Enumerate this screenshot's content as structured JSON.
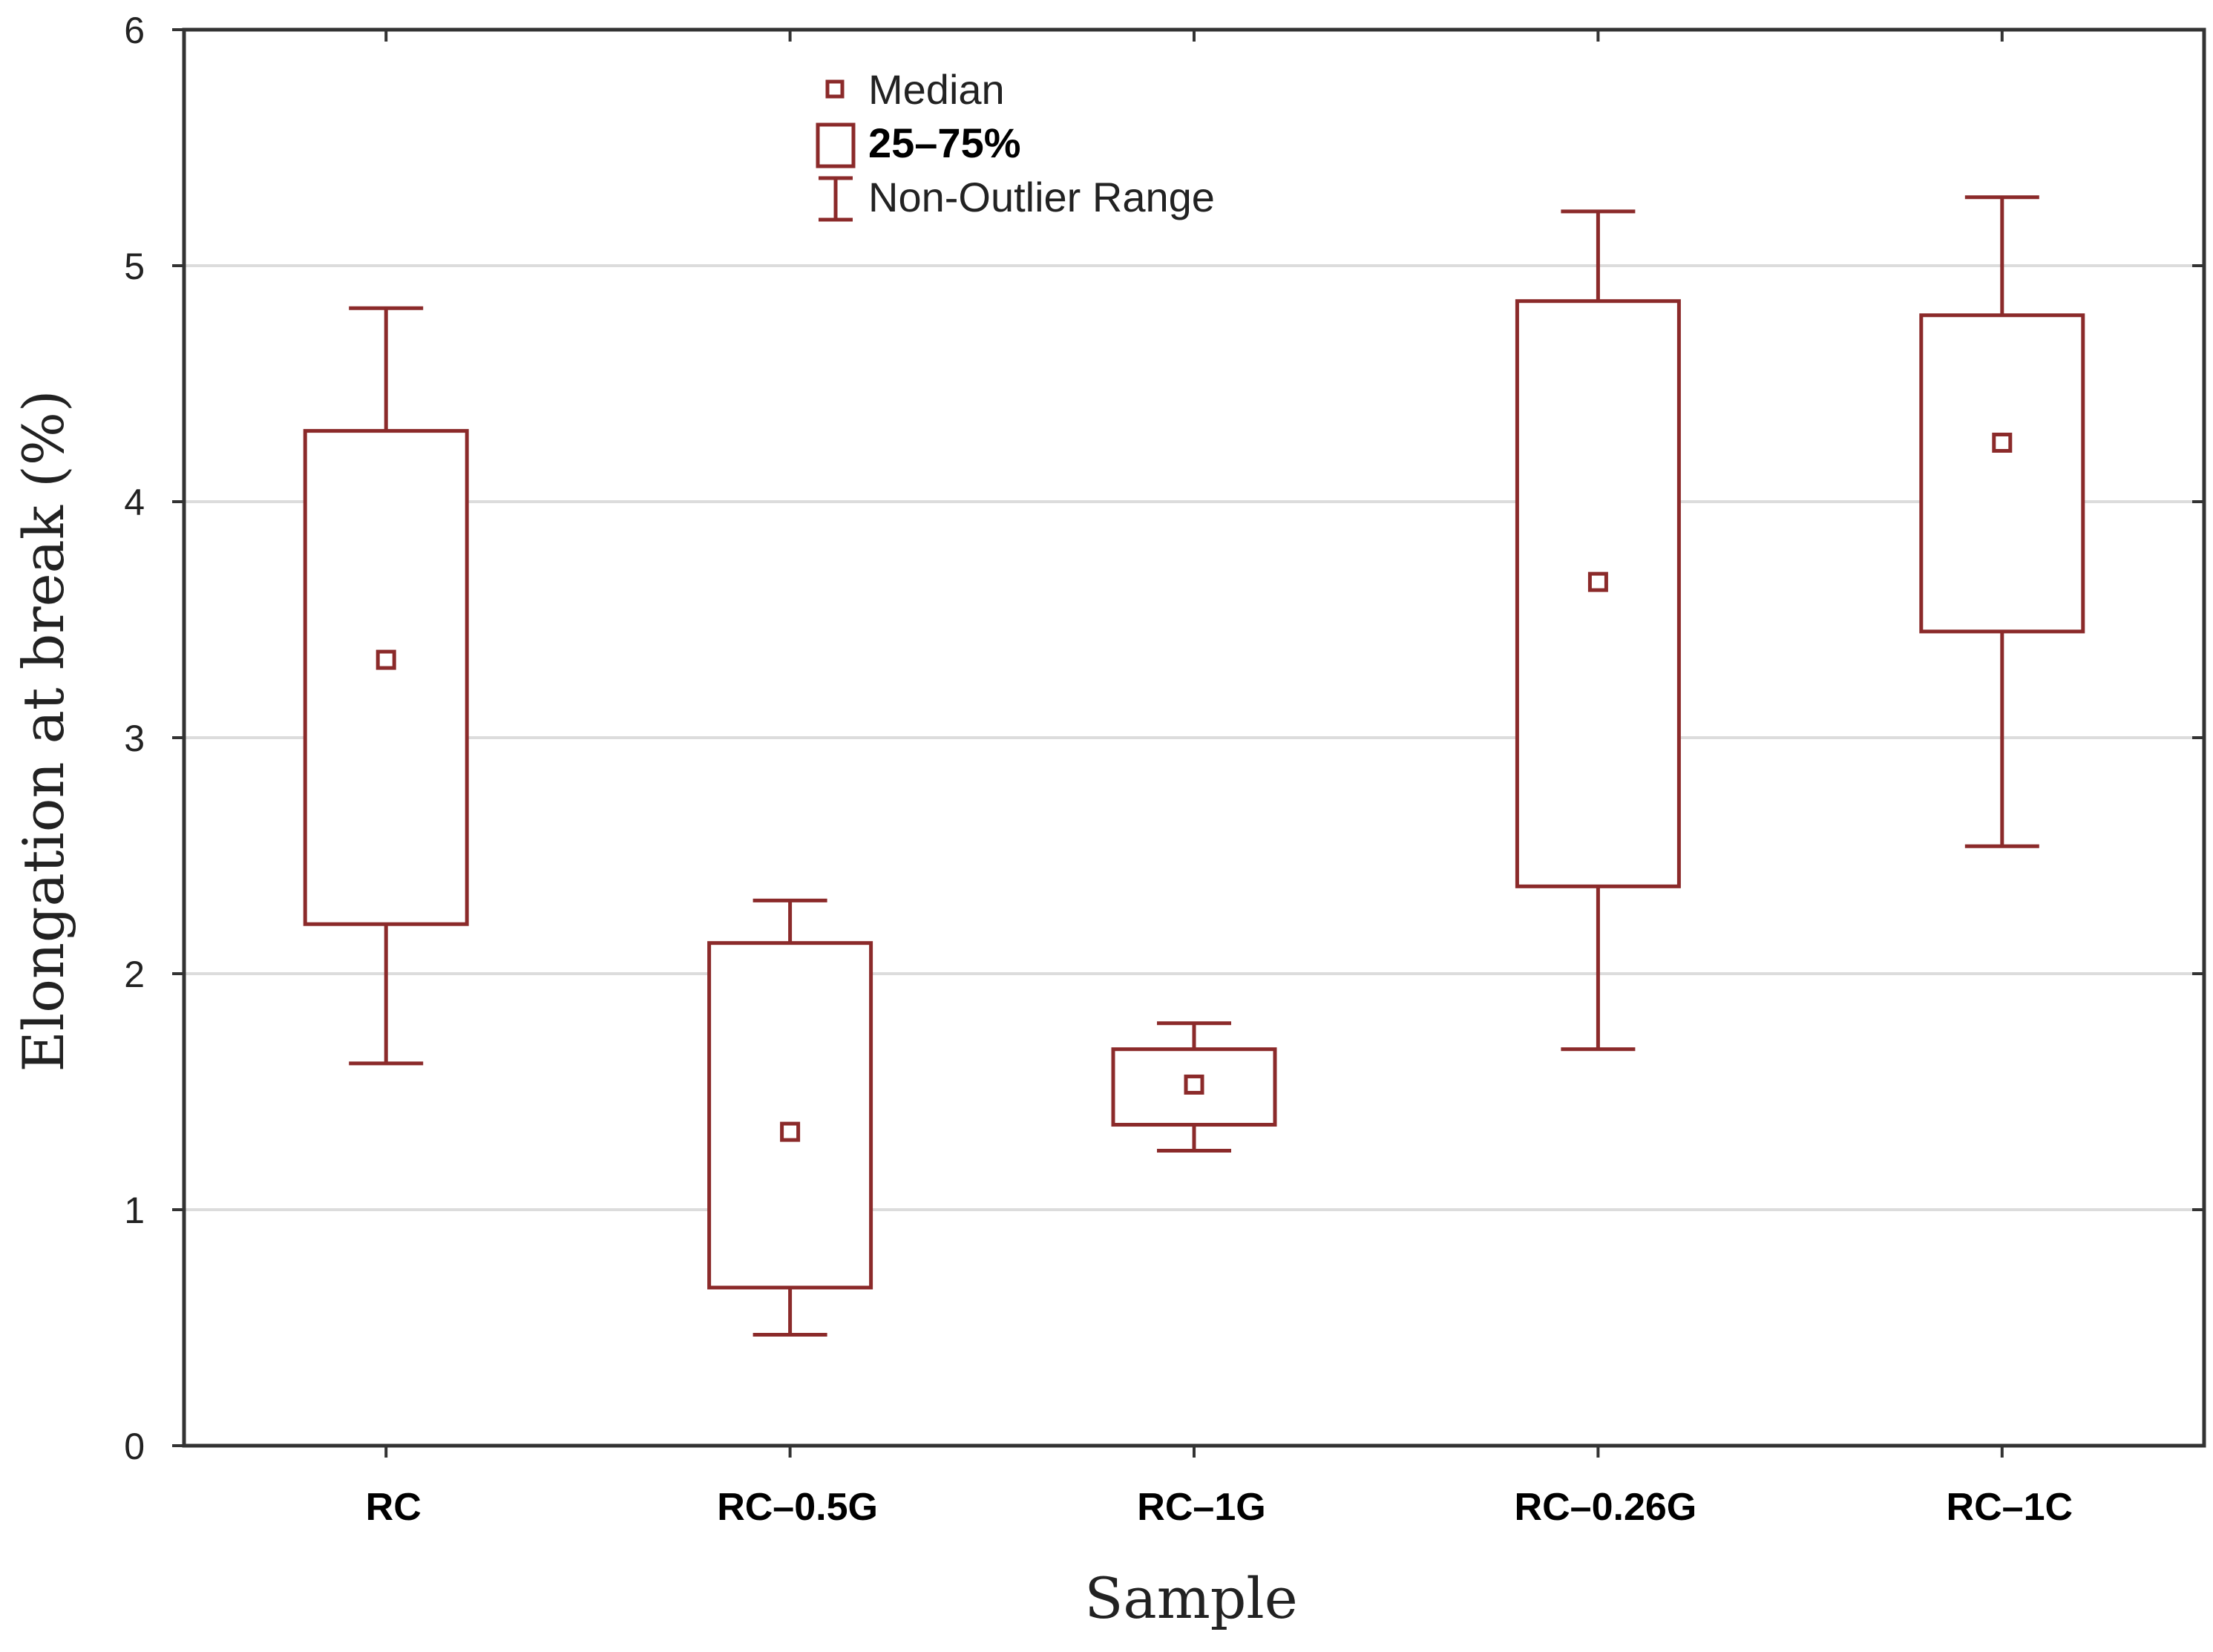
{
  "chart_data": {
    "type": "box",
    "xlabel": "Sample",
    "ylabel": "Elongation at break (%)",
    "ylim": [
      0,
      6
    ],
    "yticks": [
      "0",
      "1",
      "2",
      "3",
      "4",
      "5",
      "6"
    ],
    "grid": true,
    "legend_position": "top-center",
    "legend": {
      "median": "Median",
      "box": "25–75%",
      "whisker": "Non-Outlier Range"
    },
    "colors": {
      "series": "#8b2a2a",
      "grid": "#dcdcdc",
      "axis": "#333333"
    },
    "categories": [
      "RC",
      "RC–0.5G",
      "RC–1G",
      "RC–0.26G",
      "RC–1C"
    ],
    "boxes": [
      {
        "label": "RC",
        "whisker_low": 1.62,
        "q1": 2.21,
        "median": 3.33,
        "q3": 4.3,
        "whisker_high": 4.82
      },
      {
        "label": "RC–0.5G",
        "whisker_low": 0.47,
        "q1": 0.67,
        "median": 1.33,
        "q3": 2.13,
        "whisker_high": 2.31
      },
      {
        "label": "RC–1G",
        "whisker_low": 1.25,
        "q1": 1.36,
        "median": 1.53,
        "q3": 1.68,
        "whisker_high": 1.79
      },
      {
        "label": "RC–0.26G",
        "whisker_low": 1.68,
        "q1": 2.37,
        "median": 3.66,
        "q3": 4.85,
        "whisker_high": 5.23
      },
      {
        "label": "RC–1C",
        "whisker_low": 2.54,
        "q1": 3.45,
        "median": 4.25,
        "q3": 4.79,
        "whisker_high": 5.29
      }
    ]
  }
}
